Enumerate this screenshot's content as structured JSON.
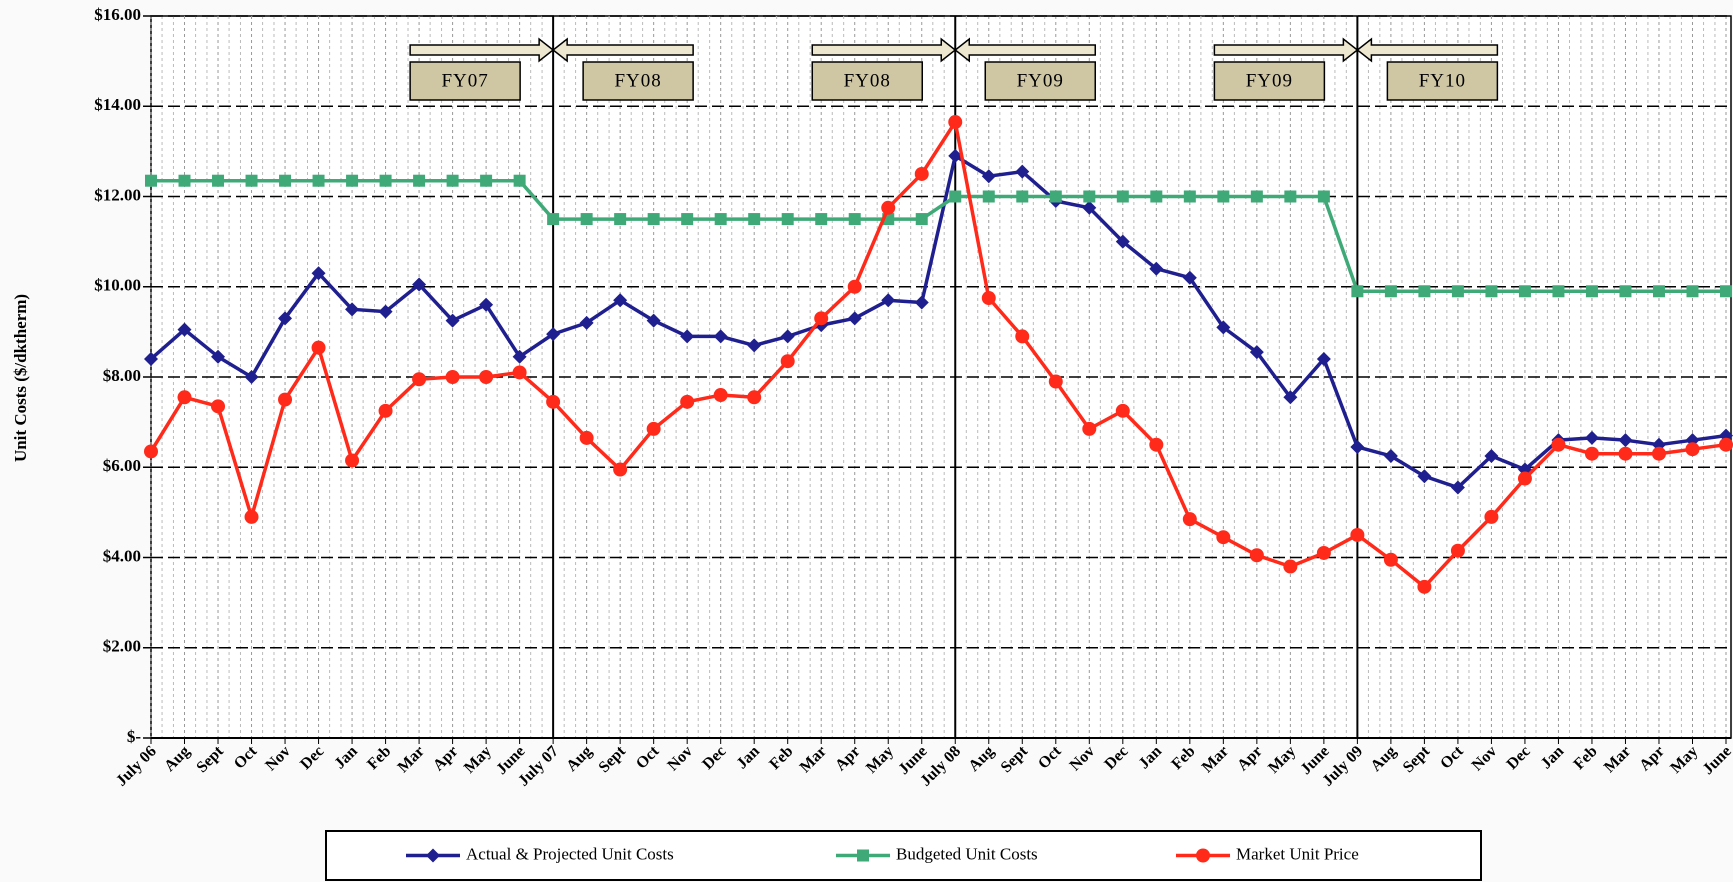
{
  "chart_data": {
    "type": "line",
    "y_label": "Unit Costs ($/dktherm)",
    "categories": [
      "July 06",
      "Aug",
      "Sept",
      "Oct",
      "Nov",
      "Dec",
      "Jan",
      "Feb",
      "Mar",
      "Apr",
      "May",
      "June",
      "July 07",
      "Aug",
      "Sept",
      "Oct",
      "Nov",
      "Dec",
      "Jan",
      "Feb",
      "Mar",
      "Apr",
      "May",
      "June",
      "July 08",
      "Aug",
      "Sept",
      "Oct",
      "Nov",
      "Dec",
      "Jan",
      "Feb",
      "Mar",
      "Apr",
      "May",
      "June",
      "July 09",
      "Aug",
      "Sept",
      "Oct",
      "Nov",
      "Dec",
      "Jan",
      "Feb",
      "Mar",
      "Apr",
      "May",
      "June"
    ],
    "series": [
      {
        "name": "Actual & Projected  Unit Costs",
        "color": "#1f1f8f",
        "marker": "diamond",
        "values": [
          8.4,
          9.05,
          8.45,
          8.0,
          9.3,
          10.3,
          9.5,
          9.45,
          10.05,
          9.25,
          9.6,
          8.45,
          8.95,
          9.2,
          9.7,
          9.25,
          8.9,
          8.9,
          8.7,
          8.9,
          9.15,
          9.3,
          9.7,
          9.65,
          12.9,
          12.45,
          12.55,
          11.9,
          11.75,
          11.0,
          10.4,
          10.2,
          9.1,
          8.55,
          7.55,
          8.4,
          6.45,
          6.25,
          5.8,
          5.55,
          6.25,
          5.95,
          6.6,
          6.65,
          6.6,
          6.5,
          6.6,
          6.7
        ]
      },
      {
        "name": "Budgeted Unit Costs",
        "color": "#3faa78",
        "marker": "square",
        "values": [
          12.35,
          12.35,
          12.35,
          12.35,
          12.35,
          12.35,
          12.35,
          12.35,
          12.35,
          12.35,
          12.35,
          12.35,
          11.5,
          11.5,
          11.5,
          11.5,
          11.5,
          11.5,
          11.5,
          11.5,
          11.5,
          11.5,
          11.5,
          11.5,
          12.0,
          12.0,
          12.0,
          12.0,
          12.0,
          12.0,
          12.0,
          12.0,
          12.0,
          12.0,
          12.0,
          12.0,
          9.9,
          9.9,
          9.9,
          9.9,
          9.9,
          9.9,
          9.9,
          9.9,
          9.9,
          9.9,
          9.9,
          9.9
        ]
      },
      {
        "name": "Market Unit Price",
        "color": "#ff2a1a",
        "marker": "circle",
        "values": [
          6.35,
          7.55,
          7.35,
          4.9,
          7.5,
          8.65,
          6.15,
          7.25,
          7.95,
          8.0,
          8.0,
          8.1,
          7.45,
          6.65,
          5.95,
          6.85,
          7.45,
          7.6,
          7.55,
          8.35,
          9.3,
          10.0,
          11.75,
          12.5,
          13.65,
          9.75,
          8.9,
          7.9,
          6.85,
          7.25,
          6.5,
          4.85,
          4.45,
          4.05,
          3.8,
          4.1,
          4.5,
          3.95,
          3.35,
          4.15,
          4.9,
          5.75,
          6.5,
          6.3,
          6.3,
          6.3,
          6.4,
          6.5
        ]
      }
    ],
    "ylim": [
      0,
      16
    ],
    "yticks": [
      {
        "value": 0,
        "label": "$-"
      },
      {
        "value": 2,
        "label": "$2.00"
      },
      {
        "value": 4,
        "label": "$4.00"
      },
      {
        "value": 6,
        "label": "$6.00"
      },
      {
        "value": 8,
        "label": "$8.00"
      },
      {
        "value": 10,
        "label": "$10.00"
      },
      {
        "value": 12,
        "label": "$12.00"
      },
      {
        "value": 14,
        "label": "$14.00"
      },
      {
        "value": 16,
        "label": "$16.00"
      }
    ],
    "grid": true,
    "annotations": [
      "FY07",
      "FY08",
      "FY08",
      "FY09",
      "FY09",
      "FY10"
    ],
    "legend": "bottom"
  }
}
